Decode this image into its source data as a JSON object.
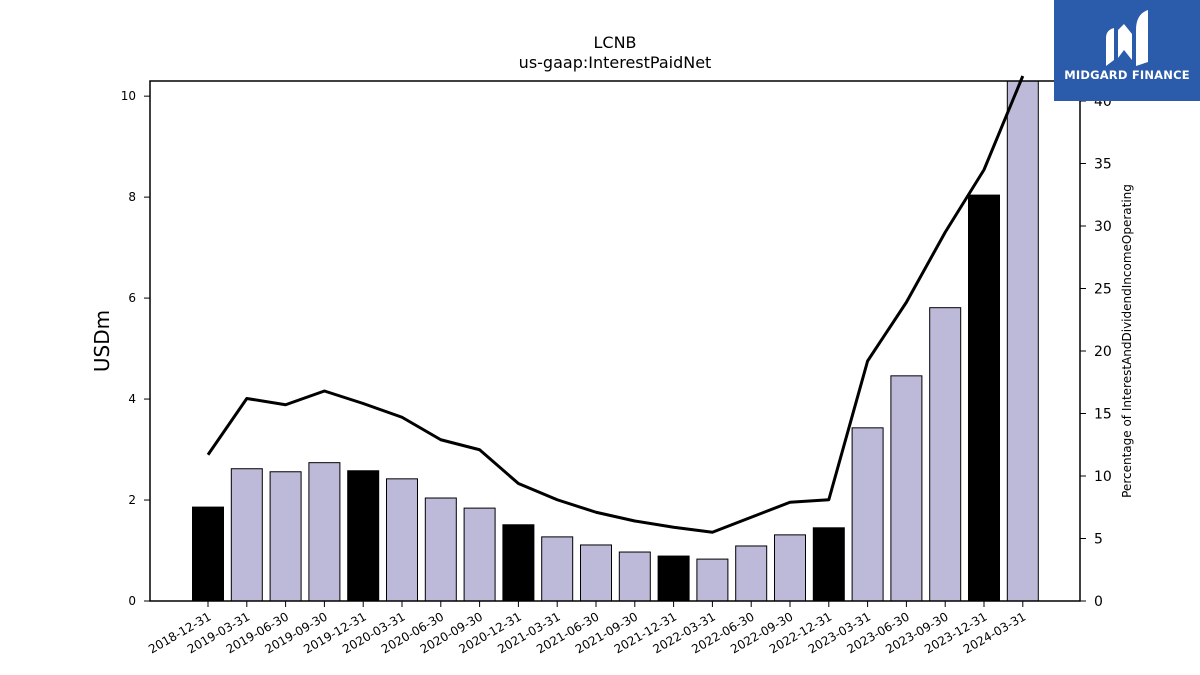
{
  "chart_data": {
    "type": "bar+line",
    "title": "LCNB",
    "subtitle": "us-gaap:InterestPaidNet",
    "ylabel": "USDm",
    "y2label": "Percentage of InterestAndDividendIncomeOperating",
    "ylim": [
      0,
      10.3
    ],
    "y2lim": [
      0,
      41.6
    ],
    "yticks": [
      0,
      2,
      4,
      6,
      8,
      10
    ],
    "y2ticks": [
      0,
      5,
      10,
      15,
      20,
      25,
      30,
      35,
      40
    ],
    "categories": [
      "2018-12-31",
      "2019-03-31",
      "2019-06-30",
      "2019-09-30",
      "2019-12-31",
      "2020-03-31",
      "2020-06-30",
      "2020-09-30",
      "2020-12-31",
      "2021-03-31",
      "2021-06-30",
      "2021-09-30",
      "2021-12-31",
      "2022-03-31",
      "2022-06-30",
      "2022-09-30",
      "2022-12-31",
      "2023-03-31",
      "2023-06-30",
      "2023-09-30",
      "2023-12-31",
      "2024-03-31"
    ],
    "series": [
      {
        "kind": "bar",
        "values": [
          1.86,
          2.62,
          2.56,
          2.74,
          2.58,
          2.42,
          2.04,
          1.84,
          1.51,
          1.27,
          1.11,
          0.97,
          0.89,
          0.83,
          1.09,
          1.31,
          1.45,
          3.43,
          4.46,
          5.81,
          8.04,
          10.5
        ],
        "highlight": [
          true,
          false,
          false,
          false,
          true,
          false,
          false,
          false,
          true,
          false,
          false,
          false,
          true,
          false,
          false,
          false,
          true,
          false,
          false,
          false,
          true,
          false
        ],
        "color": "#bdb9d9",
        "highlight_color": "#000000"
      },
      {
        "kind": "line",
        "axis": "right",
        "values": [
          11.7,
          16.2,
          15.7,
          16.8,
          15.8,
          14.7,
          12.9,
          12.1,
          9.4,
          8.1,
          7.1,
          6.4,
          5.9,
          5.5,
          6.7,
          7.9,
          8.1,
          19.2,
          23.9,
          29.5,
          34.5,
          42.0
        ],
        "color": "#000000"
      }
    ]
  },
  "logo": {
    "text": "MIDGARD FINANCE",
    "color": "#2b5bab"
  }
}
